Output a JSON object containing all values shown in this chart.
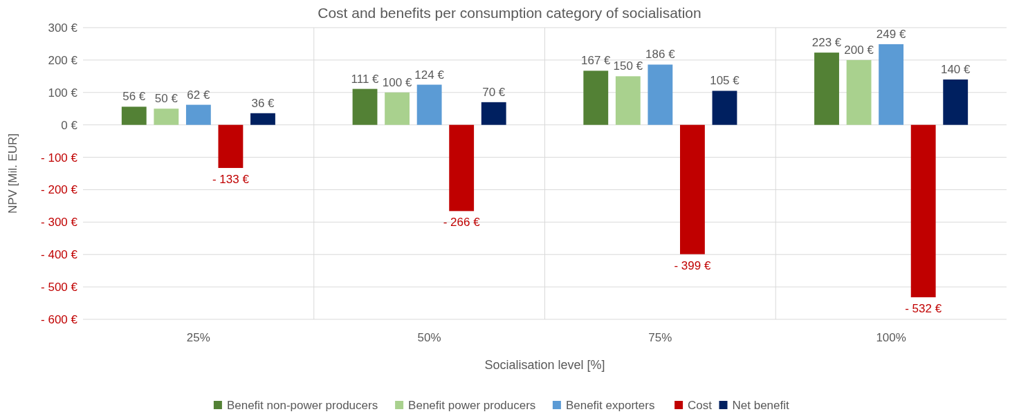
{
  "chart_data": {
    "type": "bar",
    "title": "Cost and benefits per consumption category of socialisation",
    "xlabel": "Socialisation level [%]",
    "ylabel": "NPV [Mil. EUR]",
    "categories": [
      "25%",
      "50%",
      "75%",
      "100%"
    ],
    "series": [
      {
        "name": "Benefit non-power producers",
        "color": "#538135",
        "values": [
          56,
          111,
          167,
          223
        ],
        "value_labels": [
          "56 €",
          "111 €",
          "167 €",
          "223 €"
        ]
      },
      {
        "name": "Benefit power producers",
        "color": "#a9d18e",
        "values": [
          50,
          100,
          150,
          200
        ],
        "value_labels": [
          "50 €",
          "100 €",
          "150 €",
          "200 €"
        ]
      },
      {
        "name": "Benefit exporters",
        "color": "#5b9bd5",
        "values": [
          62,
          124,
          186,
          249
        ],
        "value_labels": [
          "62 €",
          "124 €",
          "186 €",
          "249 €"
        ]
      },
      {
        "name": "Cost",
        "color": "#c00000",
        "values": [
          -133,
          -266,
          -399,
          -532
        ],
        "value_labels": [
          "- 133 €",
          "- 266 €",
          "- 399 €",
          "- 532 €"
        ]
      },
      {
        "name": "Net benefit",
        "color": "#002060",
        "values": [
          36,
          70,
          105,
          140
        ],
        "value_labels": [
          "36 €",
          "70 €",
          "105 €",
          "140 €"
        ]
      }
    ],
    "ylim": [
      -600,
      300
    ],
    "yticks": [
      {
        "value": 300,
        "label": "300 €"
      },
      {
        "value": 200,
        "label": "200 €"
      },
      {
        "value": 100,
        "label": "100 €"
      },
      {
        "value": 0,
        "label": "0 €"
      },
      {
        "value": -100,
        "label": "- 100 €"
      },
      {
        "value": -200,
        "label": "- 200 €"
      },
      {
        "value": -300,
        "label": "- 300 €"
      },
      {
        "value": -400,
        "label": "- 400 €"
      },
      {
        "value": -500,
        "label": "- 500 €"
      },
      {
        "value": -600,
        "label": "- 600 €"
      }
    ],
    "grid": true,
    "legend": "bottom"
  }
}
